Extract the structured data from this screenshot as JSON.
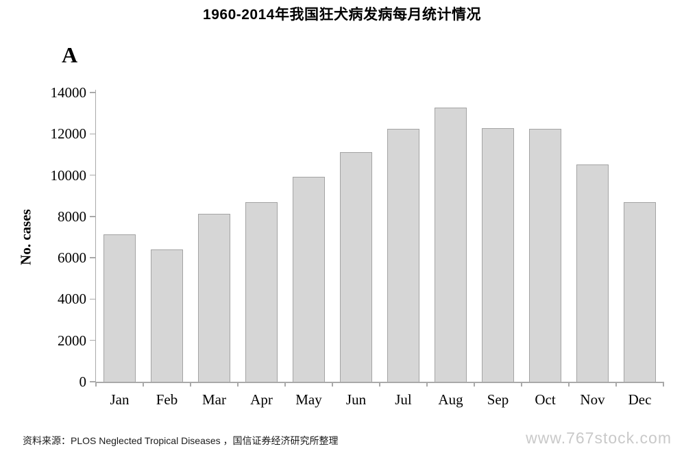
{
  "page": {
    "background": "#ffffff"
  },
  "panel_label": "A",
  "chart_data": {
    "type": "bar",
    "title": "1960-2014年我国狂犬病发病每月统计情况",
    "categories": [
      "Jan",
      "Feb",
      "Mar",
      "Apr",
      "May",
      "Jun",
      "Jul",
      "Aug",
      "Sep",
      "Oct",
      "Nov",
      "Dec"
    ],
    "values": [
      7140,
      6390,
      8140,
      8700,
      9910,
      11100,
      12240,
      13270,
      12290,
      12250,
      10530,
      8700
    ],
    "xlabel": "",
    "ylabel": "No. cases",
    "ylim": [
      0,
      14000
    ],
    "yticks": [
      0,
      2000,
      4000,
      6000,
      8000,
      10000,
      12000,
      14000
    ],
    "grid": false,
    "legend": false,
    "bar_fill": "#d6d6d6",
    "bar_border": "#a3a3a3",
    "axis_color": "#a9a9a9",
    "bar_width_ratio": 0.667
  },
  "footer": {
    "source_text": "资料来源：PLOS Neglected Tropical Diseases ，国信证券经济研究所整理"
  },
  "watermark": "www.767stock.com"
}
